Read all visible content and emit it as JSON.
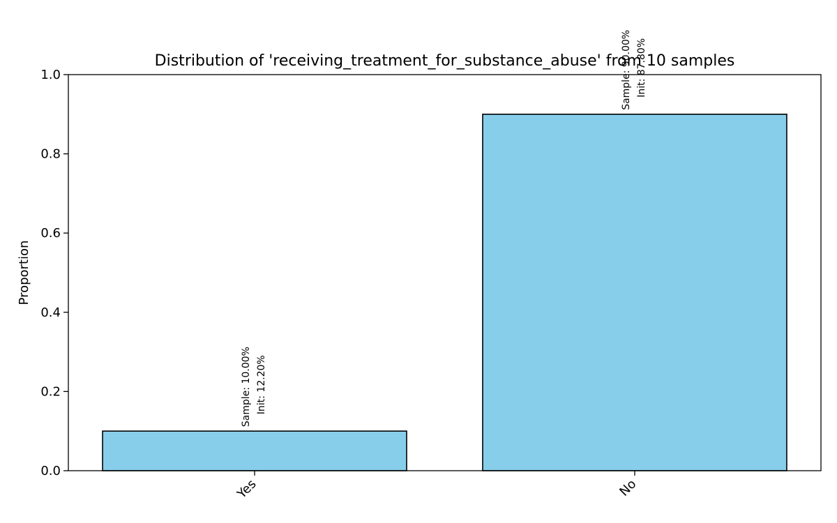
{
  "chart_data": {
    "type": "bar",
    "title": "Distribution of 'receiving_treatment_for_substance_abuse' from 10 samples",
    "xlabel": "",
    "ylabel": "Proportion",
    "categories": [
      "Yes",
      "No"
    ],
    "values": [
      0.1,
      0.9
    ],
    "annotations": [
      [
        "Sample: 10.00%",
        "Init: 12.20%"
      ],
      [
        "Sample: 90.00%",
        "Init: 87.80%"
      ]
    ],
    "ylim": [
      0,
      1.0
    ],
    "yticks": [
      0.0,
      0.2,
      0.4,
      0.6,
      0.8,
      1.0
    ],
    "ytick_labels": [
      "0.0",
      "0.2",
      "0.4",
      "0.6",
      "0.8",
      "1.0"
    ],
    "grid": false,
    "legend": "none",
    "colors": {
      "bar_fill": "#87CEEB",
      "bar_edge": "#000000",
      "axis": "#000000",
      "background": "#ffffff"
    }
  }
}
